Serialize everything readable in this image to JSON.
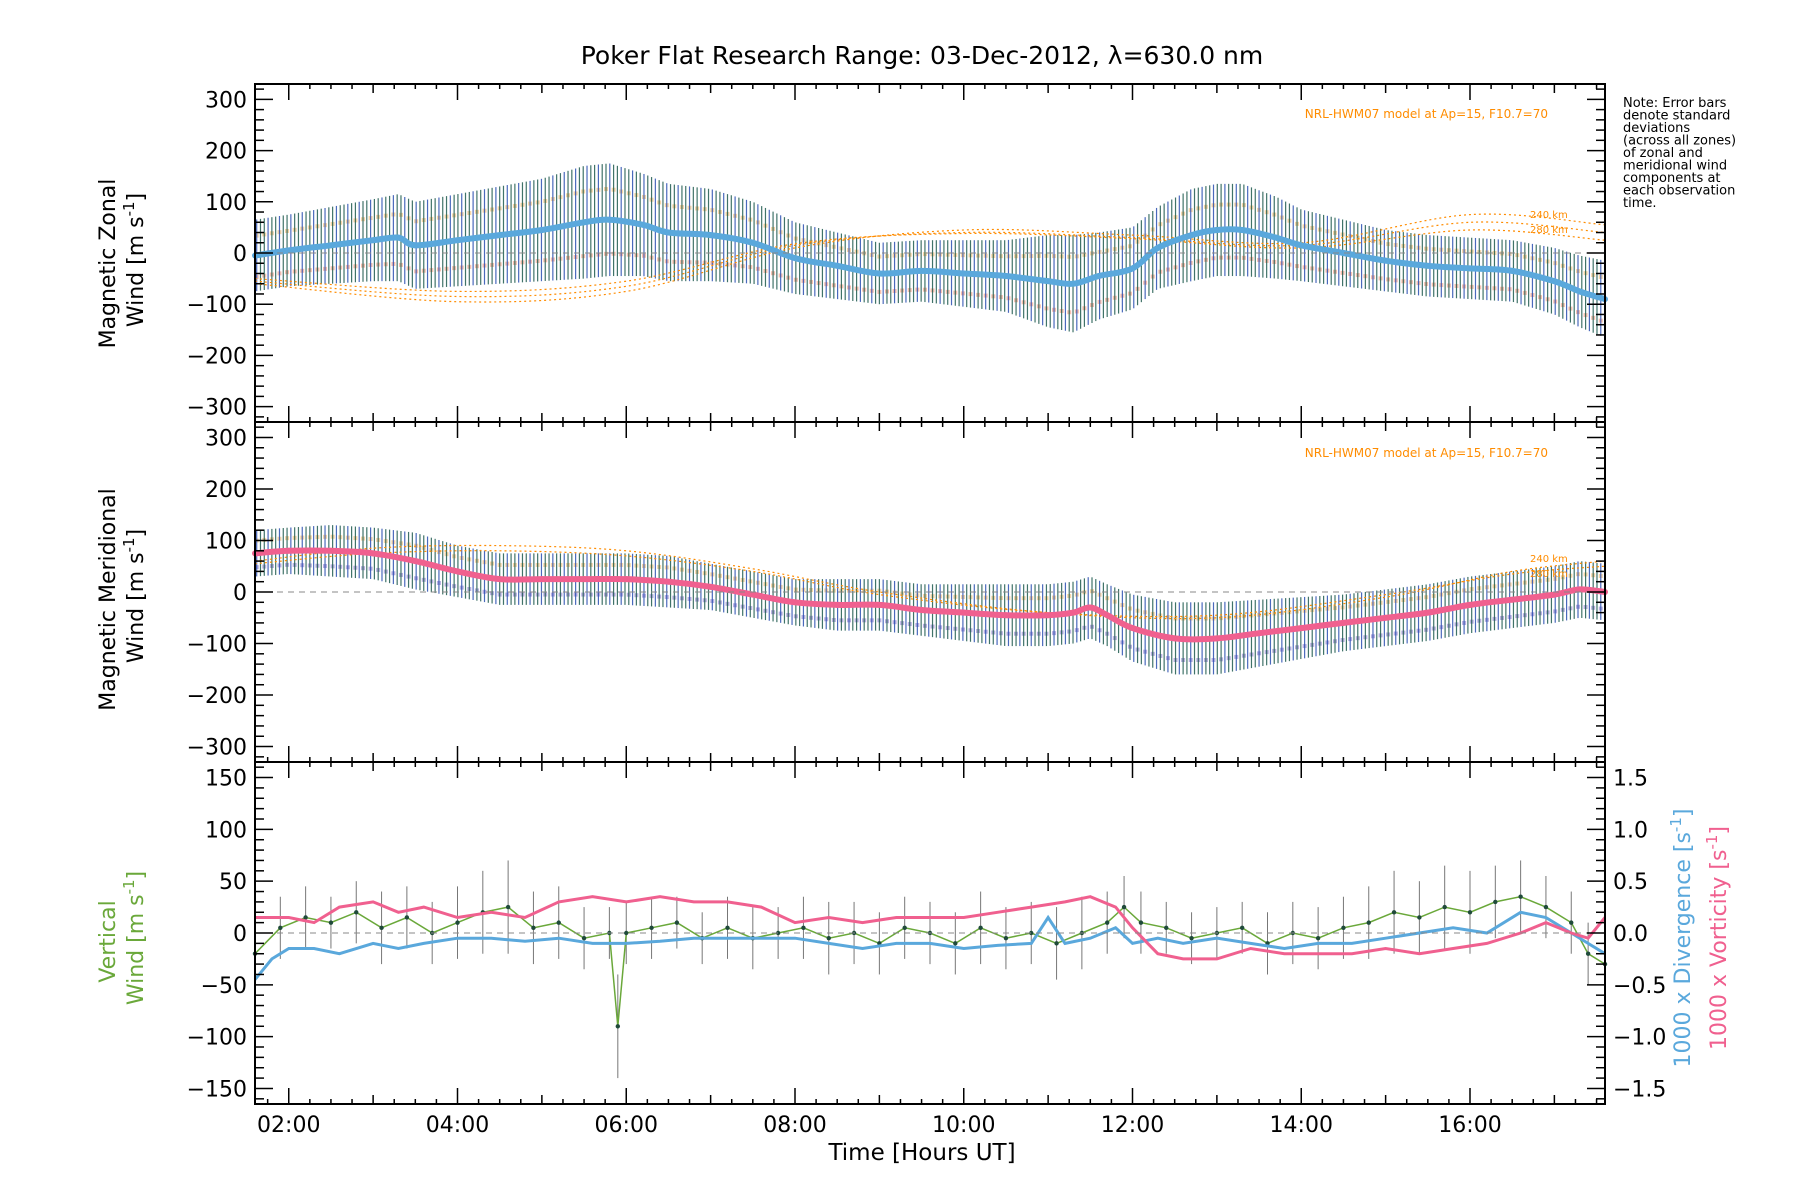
{
  "title": "Poker Flat Research Range: 03-Dec-2012, λ=630.0 nm",
  "note": [
    "Note: Error bars",
    "denote standard",
    "deviations",
    "(across all zones)",
    "of zonal and",
    "meridional wind",
    "components at",
    "each observation",
    "time."
  ],
  "xlabel": "Time [Hours UT]",
  "colors": {
    "zonal": "#5aa8dc",
    "meridional": "#f0608f",
    "vertical": "#6aa83a",
    "divergence": "#5aa8dc",
    "vorticity": "#f0608f",
    "model": "#ff8c00",
    "errbar_dark": "#1f5a4f",
    "errbar_blue": "#2a4fb0"
  },
  "chart_data": [
    {
      "id": "zonal",
      "type": "line",
      "ylabel_line1": "Magnetic Zonal",
      "ylabel_line2": "Wind [m s",
      "ylabel_sup": "-1",
      "ylabel_end": "]",
      "ylim": [
        -330,
        330
      ],
      "yticks": [
        300,
        200,
        100,
        0,
        -100,
        -200,
        -300
      ],
      "ytick_labels": [
        "300",
        "200",
        "100",
        "0",
        "−100",
        "−200",
        "−300"
      ],
      "xlim": [
        1.6,
        17.6
      ],
      "model_label": "NRL-HWM07 model at Ap=15, F10.7=70",
      "alt_labels": [
        "240 km",
        "280 km"
      ],
      "series": [
        {
          "x": [
            1.6,
            2.0,
            2.5,
            3.0,
            3.3,
            3.5,
            4.0,
            4.5,
            5.0,
            5.5,
            5.8,
            6.2,
            6.5,
            7.0,
            7.5,
            8.0,
            8.5,
            9.0,
            9.5,
            10.0,
            10.5,
            11.0,
            11.3,
            11.6,
            12.0,
            12.3,
            12.7,
            13.0,
            13.3,
            13.7,
            14.0,
            14.5,
            15.0,
            15.5,
            16.0,
            16.5,
            17.0,
            17.3,
            17.6
          ],
          "values": [
            -5,
            5,
            15,
            25,
            30,
            15,
            25,
            35,
            45,
            60,
            65,
            55,
            40,
            35,
            20,
            -10,
            -25,
            -40,
            -35,
            -40,
            -45,
            -55,
            -60,
            -45,
            -30,
            10,
            35,
            45,
            45,
            30,
            15,
            0,
            -15,
            -25,
            -30,
            -35,
            -55,
            -75,
            -90
          ],
          "spread": [
            70,
            70,
            75,
            80,
            85,
            85,
            90,
            95,
            100,
            110,
            110,
            100,
            95,
            90,
            80,
            70,
            65,
            60,
            60,
            65,
            70,
            90,
            95,
            85,
            80,
            80,
            90,
            90,
            90,
            80,
            70,
            65,
            60,
            60,
            60,
            60,
            65,
            70,
            75
          ]
        }
      ],
      "model_curves": [
        {
          "x": [
            1.6,
            4.0,
            6.0,
            8.0,
            10.0,
            12.0,
            14.0,
            16.0,
            17.6
          ],
          "values": [
            -60,
            -95,
            -75,
            10,
            45,
            35,
            20,
            75,
            55
          ]
        },
        {
          "x": [
            1.6,
            4.0,
            6.0,
            8.0,
            10.0,
            12.0,
            14.0,
            16.0,
            17.6
          ],
          "values": [
            -55,
            -85,
            -65,
            15,
            40,
            30,
            15,
            60,
            40
          ]
        },
        {
          "x": [
            1.6,
            4.0,
            6.0,
            8.0,
            10.0,
            12.0,
            14.0,
            16.0,
            17.6
          ],
          "values": [
            -50,
            -75,
            -55,
            18,
            38,
            28,
            10,
            45,
            25
          ]
        }
      ]
    },
    {
      "id": "meridional",
      "type": "line",
      "ylabel_line1": "Magnetic Meridional",
      "ylabel_line2": "Wind [m s",
      "ylabel_sup": "-1",
      "ylabel_end": "]",
      "ylim": [
        -330,
        330
      ],
      "yticks": [
        300,
        200,
        100,
        0,
        -100,
        -200,
        -300
      ],
      "ytick_labels": [
        "300",
        "200",
        "100",
        "0",
        "−100",
        "−200",
        "−300"
      ],
      "xlim": [
        1.6,
        17.6
      ],
      "model_label": "NRL-HWM07 model at Ap=15, F10.7=70",
      "alt_labels": [
        "240 km",
        "280 km"
      ],
      "series": [
        {
          "x": [
            1.6,
            2.0,
            2.5,
            3.0,
            3.5,
            4.0,
            4.5,
            5.0,
            5.5,
            6.0,
            6.5,
            7.0,
            7.5,
            8.0,
            8.5,
            9.0,
            9.5,
            10.0,
            10.5,
            11.0,
            11.3,
            11.5,
            11.7,
            12.0,
            12.5,
            13.0,
            13.5,
            14.0,
            14.5,
            15.0,
            15.5,
            16.0,
            16.5,
            17.0,
            17.3,
            17.6
          ],
          "values": [
            75,
            80,
            80,
            75,
            60,
            40,
            25,
            25,
            25,
            25,
            20,
            10,
            -5,
            -20,
            -25,
            -25,
            -35,
            -40,
            -45,
            -45,
            -40,
            -30,
            -45,
            -70,
            -90,
            -90,
            -80,
            -70,
            -60,
            -50,
            -40,
            -25,
            -15,
            -5,
            5,
            0
          ],
          "spread": [
            45,
            45,
            50,
            50,
            55,
            50,
            50,
            50,
            50,
            50,
            50,
            45,
            45,
            45,
            50,
            50,
            50,
            55,
            60,
            60,
            60,
            60,
            60,
            65,
            70,
            70,
            65,
            60,
            55,
            55,
            55,
            55,
            55,
            55,
            55,
            55
          ]
        }
      ],
      "model_curves": [
        {
          "x": [
            1.6,
            3.0,
            4.5,
            6.0,
            7.5,
            9.0,
            11.0,
            13.0,
            15.0,
            16.5,
            17.6
          ],
          "values": [
            60,
            85,
            90,
            80,
            45,
            0,
            -40,
            -50,
            -10,
            40,
            60
          ]
        },
        {
          "x": [
            1.6,
            3.0,
            4.5,
            6.0,
            7.5,
            9.0,
            11.0,
            13.0,
            15.0,
            16.5,
            17.6
          ],
          "values": [
            55,
            75,
            80,
            70,
            40,
            -5,
            -40,
            -45,
            -5,
            35,
            50
          ]
        }
      ]
    },
    {
      "id": "vertical",
      "type": "line",
      "ylabel_line1": "Vertical",
      "ylabel_line2": "Wind [m s",
      "ylabel_sup": "-1",
      "ylabel_end": "]",
      "ylim": [
        -165,
        165
      ],
      "yticks": [
        150,
        100,
        50,
        0,
        -50,
        -100,
        -150
      ],
      "ytick_labels": [
        "150",
        "100",
        "50",
        "0",
        "−50",
        "−100",
        "−150"
      ],
      "y2lim": [
        -1.65,
        1.65
      ],
      "y2ticks": [
        1.5,
        1.0,
        0.5,
        0.0,
        -0.5,
        -1.0,
        -1.5
      ],
      "y2tick_labels": [
        "1.5",
        "1.0",
        "0.5",
        "0.0",
        "−0.5",
        "−1.0",
        "−1.5"
      ],
      "y2label_div": "1000 x Divergence [s",
      "y2label_vort": "1000 x Vorticity [s",
      "y2label_sup": "-1",
      "y2label_end": "]",
      "xlim": [
        1.6,
        17.6
      ],
      "xticks": [
        2,
        4,
        6,
        8,
        10,
        12,
        14,
        16
      ],
      "xtick_labels": [
        "02:00",
        "04:00",
        "06:00",
        "08:00",
        "10:00",
        "12:00",
        "14:00",
        "16:00"
      ],
      "series": [
        {
          "name": "Vertical",
          "x": [
            1.6,
            1.9,
            2.2,
            2.5,
            2.8,
            3.1,
            3.4,
            3.7,
            4.0,
            4.3,
            4.6,
            4.9,
            5.2,
            5.5,
            5.8,
            5.9,
            6.0,
            6.3,
            6.6,
            6.9,
            7.2,
            7.5,
            7.8,
            8.1,
            8.4,
            8.7,
            9.0,
            9.3,
            9.6,
            9.9,
            10.2,
            10.5,
            10.8,
            11.1,
            11.4,
            11.7,
            11.9,
            12.1,
            12.4,
            12.7,
            13.0,
            13.3,
            13.6,
            13.9,
            14.2,
            14.5,
            14.8,
            15.1,
            15.4,
            15.7,
            16.0,
            16.3,
            16.6,
            16.9,
            17.2,
            17.4,
            17.6
          ],
          "values": [
            -20,
            5,
            15,
            10,
            20,
            5,
            15,
            0,
            10,
            20,
            25,
            5,
            10,
            -5,
            0,
            -90,
            0,
            5,
            10,
            -5,
            5,
            -5,
            0,
            5,
            -5,
            0,
            -10,
            5,
            0,
            -10,
            5,
            -5,
            0,
            -10,
            0,
            10,
            25,
            10,
            5,
            -5,
            0,
            5,
            -10,
            0,
            -5,
            5,
            10,
            20,
            15,
            25,
            20,
            30,
            35,
            25,
            10,
            -20,
            -30
          ],
          "errors": [
            25,
            30,
            30,
            25,
            30,
            35,
            30,
            30,
            35,
            40,
            45,
            35,
            35,
            30,
            25,
            50,
            30,
            30,
            25,
            25,
            30,
            30,
            25,
            30,
            35,
            30,
            30,
            30,
            30,
            30,
            35,
            30,
            30,
            35,
            35,
            30,
            30,
            30,
            25,
            25,
            25,
            25,
            30,
            30,
            30,
            30,
            35,
            40,
            35,
            40,
            40,
            35,
            35,
            30,
            30,
            30,
            30
          ]
        },
        {
          "name": "Divergence",
          "x": [
            1.6,
            1.8,
            2.0,
            2.3,
            2.6,
            3.0,
            3.3,
            3.6,
            4.0,
            4.4,
            4.8,
            5.2,
            5.6,
            6.0,
            6.4,
            6.8,
            7.2,
            7.6,
            8.0,
            8.4,
            8.8,
            9.2,
            9.6,
            10.0,
            10.4,
            10.8,
            11.0,
            11.2,
            11.5,
            11.8,
            12.0,
            12.3,
            12.6,
            13.0,
            13.4,
            13.8,
            14.2,
            14.6,
            15.0,
            15.4,
            15.8,
            16.2,
            16.6,
            16.9,
            17.2,
            17.4,
            17.6
          ],
          "values": [
            -0.45,
            -0.25,
            -0.15,
            -0.15,
            -0.2,
            -0.1,
            -0.15,
            -0.1,
            -0.05,
            -0.05,
            -0.08,
            -0.05,
            -0.1,
            -0.1,
            -0.08,
            -0.05,
            -0.05,
            -0.05,
            -0.05,
            -0.1,
            -0.15,
            -0.1,
            -0.1,
            -0.15,
            -0.12,
            -0.1,
            0.15,
            -0.1,
            -0.05,
            0.05,
            -0.1,
            -0.05,
            -0.1,
            -0.05,
            -0.1,
            -0.15,
            -0.1,
            -0.1,
            -0.05,
            0.0,
            0.05,
            0.0,
            0.2,
            0.15,
            0.0,
            -0.1,
            -0.2
          ]
        },
        {
          "name": "Vorticity",
          "x": [
            1.6,
            2.0,
            2.3,
            2.6,
            3.0,
            3.3,
            3.6,
            4.0,
            4.4,
            4.8,
            5.2,
            5.6,
            6.0,
            6.4,
            6.8,
            7.2,
            7.6,
            8.0,
            8.4,
            8.8,
            9.2,
            9.6,
            10.0,
            10.4,
            10.8,
            11.2,
            11.5,
            11.8,
            12.0,
            12.3,
            12.6,
            13.0,
            13.4,
            13.8,
            14.2,
            14.6,
            15.0,
            15.4,
            15.8,
            16.2,
            16.6,
            16.9,
            17.2,
            17.4,
            17.6
          ],
          "values": [
            0.15,
            0.15,
            0.1,
            0.25,
            0.3,
            0.2,
            0.25,
            0.15,
            0.2,
            0.15,
            0.3,
            0.35,
            0.3,
            0.35,
            0.3,
            0.3,
            0.25,
            0.1,
            0.15,
            0.1,
            0.15,
            0.15,
            0.15,
            0.2,
            0.25,
            0.3,
            0.35,
            0.25,
            0.05,
            -0.2,
            -0.25,
            -0.25,
            -0.15,
            -0.2,
            -0.2,
            -0.2,
            -0.15,
            -0.2,
            -0.15,
            -0.1,
            0.0,
            0.1,
            0.0,
            -0.05,
            0.15
          ]
        }
      ]
    }
  ]
}
